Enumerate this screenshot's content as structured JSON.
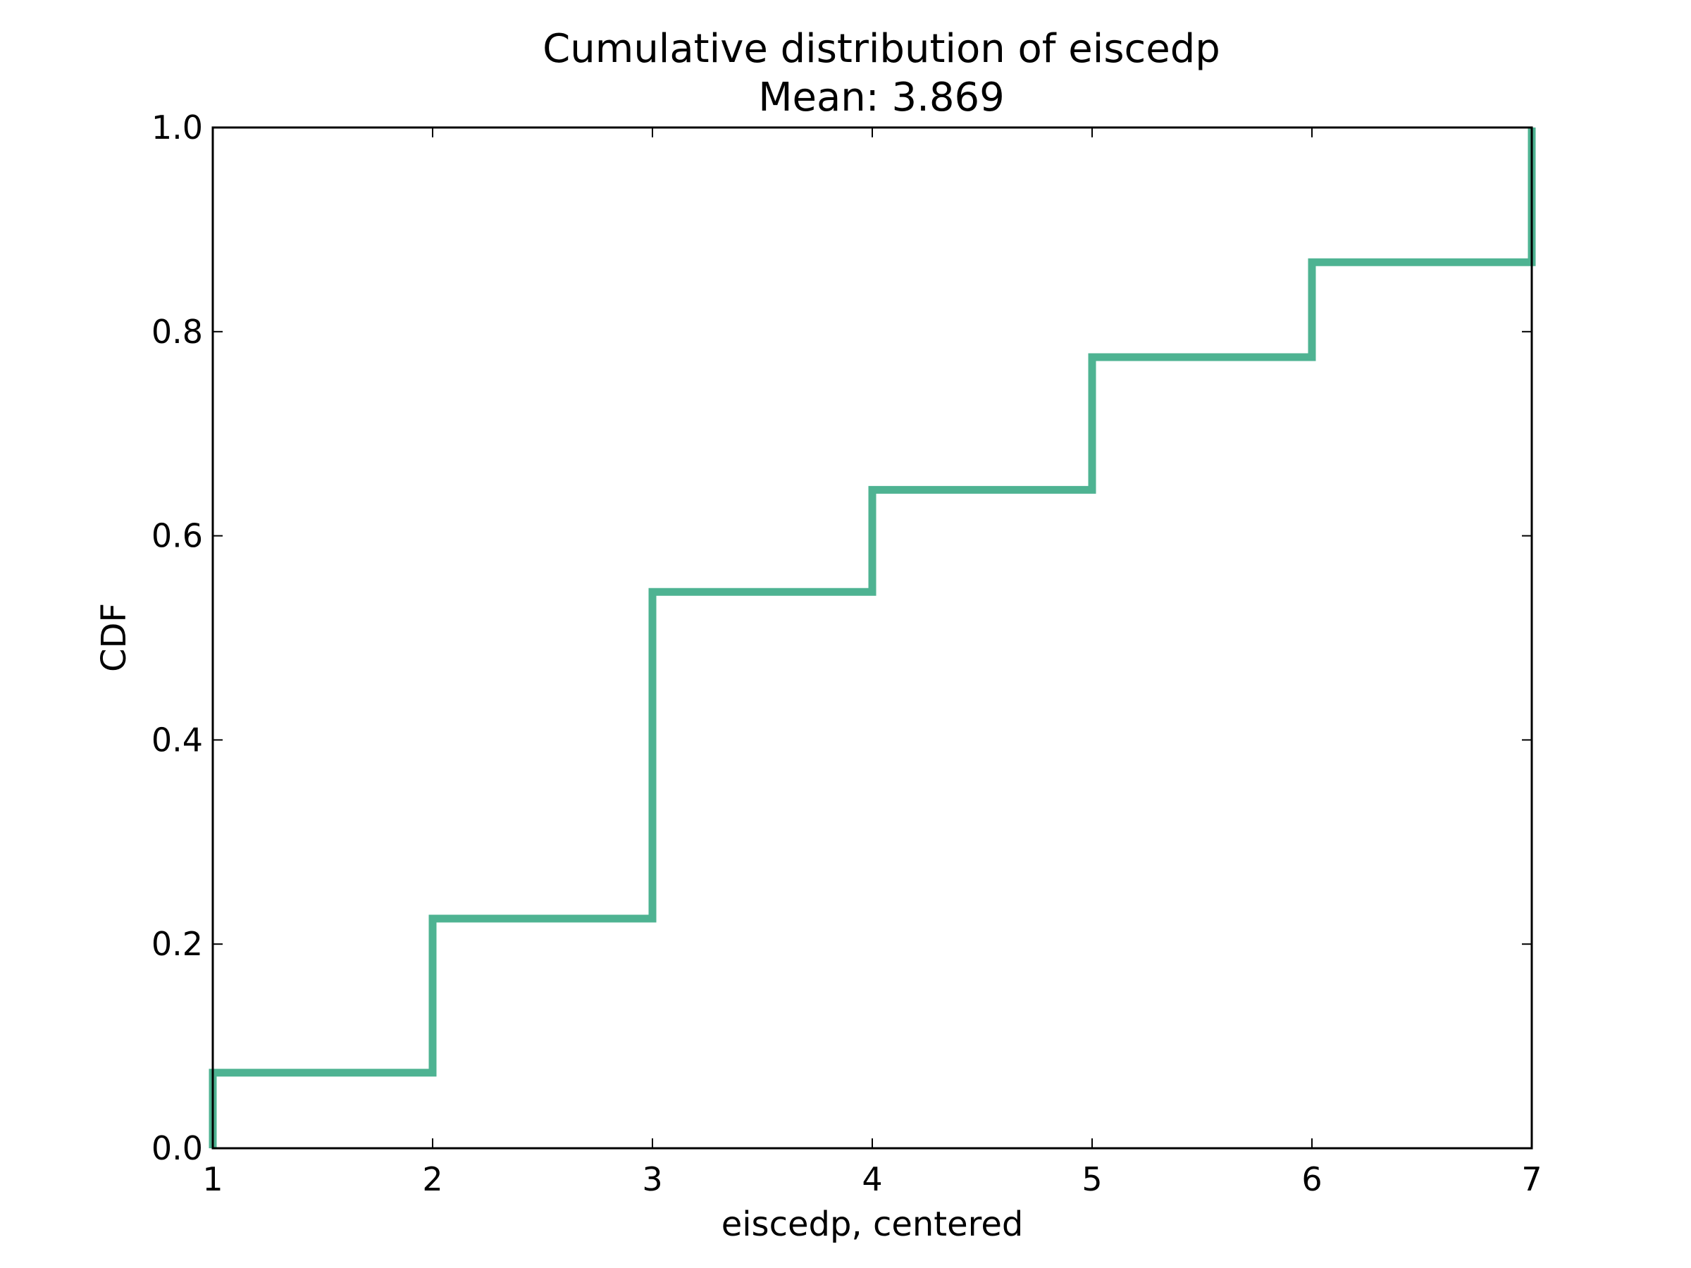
{
  "chart_data": {
    "type": "line",
    "step": true,
    "title": "Cumulative distribution of eiscedp",
    "subtitle": "Mean: 3.869",
    "xlabel": "eiscedp, centered",
    "ylabel": "CDF",
    "xlim": [
      1,
      7
    ],
    "ylim": [
      0.0,
      1.0
    ],
    "xticks": [
      {
        "value": 1,
        "label": "1"
      },
      {
        "value": 2,
        "label": "2"
      },
      {
        "value": 3,
        "label": "3"
      },
      {
        "value": 4,
        "label": "4"
      },
      {
        "value": 5,
        "label": "5"
      },
      {
        "value": 6,
        "label": "6"
      },
      {
        "value": 7,
        "label": "7"
      }
    ],
    "yticks": [
      {
        "value": 0.0,
        "label": "0.0"
      },
      {
        "value": 0.2,
        "label": "0.2"
      },
      {
        "value": 0.4,
        "label": "0.4"
      },
      {
        "value": 0.6,
        "label": "0.6"
      },
      {
        "value": 0.8,
        "label": "0.8"
      },
      {
        "value": 1.0,
        "label": "1.0"
      }
    ],
    "grid": false,
    "series": [
      {
        "name": "eiscedp",
        "color": "#4eb392",
        "x": [
          1,
          2,
          3,
          4,
          5,
          6,
          7
        ],
        "cdf": [
          0.074,
          0.225,
          0.545,
          0.645,
          0.775,
          0.868,
          1.0
        ]
      }
    ]
  }
}
